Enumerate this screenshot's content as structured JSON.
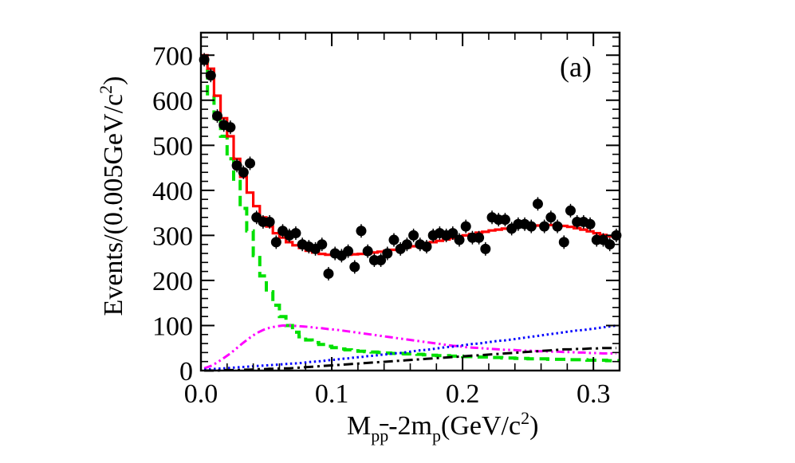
{
  "chart_data": {
    "type": "line",
    "panel_label": "(a)",
    "xlabel": {
      "main": "M",
      "sub1": "p",
      "sub_bar": "p",
      "rest": "-2m",
      "sub2": "p",
      "unit_open": "(GeV/c",
      "sup": "2",
      "unit_close": ")"
    },
    "ylabel": {
      "main": "Events/(0.005GeV/c",
      "sup": "2",
      "close": ")"
    },
    "xlim": [
      0.0,
      0.32
    ],
    "ylim": [
      0,
      750
    ],
    "x_ticks": [
      0.0,
      0.1,
      0.2,
      0.3
    ],
    "x_tick_labels": [
      "0.0",
      "0.1",
      "0.2",
      "0.3"
    ],
    "y_ticks": [
      0,
      100,
      200,
      300,
      400,
      500,
      600,
      700
    ],
    "y_tick_labels": [
      "0",
      "100",
      "200",
      "300",
      "400",
      "500",
      "600",
      "700"
    ],
    "data_points": {
      "name": "Data",
      "x": [
        0.0025,
        0.0075,
        0.0125,
        0.0175,
        0.0225,
        0.0275,
        0.0325,
        0.0375,
        0.0425,
        0.0475,
        0.0525,
        0.0575,
        0.0625,
        0.0675,
        0.0725,
        0.0775,
        0.0825,
        0.0875,
        0.0925,
        0.0975,
        0.1025,
        0.1075,
        0.1125,
        0.1175,
        0.1225,
        0.1275,
        0.1325,
        0.1375,
        0.1425,
        0.1475,
        0.1525,
        0.1575,
        0.1625,
        0.1675,
        0.1725,
        0.1775,
        0.1825,
        0.1875,
        0.1925,
        0.1975,
        0.2025,
        0.2075,
        0.2125,
        0.2175,
        0.2225,
        0.2275,
        0.2325,
        0.2375,
        0.2425,
        0.2475,
        0.2525,
        0.2575,
        0.2625,
        0.2675,
        0.2725,
        0.2775,
        0.2825,
        0.2875,
        0.2925,
        0.2975,
        0.3025,
        0.3075,
        0.3125,
        0.3175
      ],
      "y": [
        690,
        655,
        565,
        545,
        540,
        455,
        440,
        460,
        340,
        330,
        330,
        285,
        310,
        300,
        305,
        280,
        275,
        270,
        280,
        215,
        260,
        255,
        265,
        230,
        310,
        265,
        245,
        245,
        260,
        290,
        270,
        280,
        300,
        280,
        275,
        300,
        305,
        300,
        305,
        290,
        320,
        295,
        295,
        270,
        340,
        335,
        335,
        315,
        325,
        325,
        320,
        370,
        320,
        340,
        320,
        285,
        355,
        330,
        330,
        325,
        290,
        290,
        280,
        300
      ],
      "err": 15,
      "color": "#000000"
    },
    "fit": {
      "name": "Total fit",
      "style": "solid",
      "color": "#ff0000",
      "values": [
        700,
        670,
        610,
        560,
        520,
        470,
        430,
        395,
        365,
        340,
        320,
        305,
        295,
        285,
        278,
        272,
        266,
        262,
        259,
        257,
        256,
        256,
        257,
        258,
        259,
        260,
        262,
        264,
        266,
        268,
        270,
        273,
        276,
        279,
        282,
        285,
        288,
        291,
        294,
        297,
        300,
        303,
        306,
        308,
        311,
        313,
        315,
        317,
        319,
        320,
        321,
        322,
        323,
        323,
        322,
        321,
        319,
        316,
        313,
        309,
        305,
        301,
        298,
        296
      ]
    },
    "curves": [
      {
        "name": "Green dashed",
        "style": "dashed",
        "color": "#00e000",
        "values": [
          690,
          610,
          560,
          520,
          470,
          420,
          360,
          310,
          255,
          210,
          175,
          145,
          120,
          100,
          85,
          75,
          68,
          62,
          58,
          54,
          51,
          48,
          46,
          44,
          43,
          42,
          41,
          40,
          39,
          38,
          38,
          37,
          37,
          36,
          35,
          34,
          33,
          33,
          32,
          32,
          31,
          31,
          30,
          30,
          29,
          29,
          28,
          28,
          27,
          27,
          26,
          26,
          26,
          25,
          25,
          25,
          24,
          24,
          24,
          23,
          23,
          23,
          22,
          22
        ]
      },
      {
        "name": "Magenta dash-dot-dot",
        "style": "dashdotdot",
        "color": "#ff00ff",
        "values": [
          5,
          10,
          18,
          28,
          38,
          50,
          62,
          73,
          83,
          90,
          95,
          98,
          100,
          100,
          99,
          98,
          97,
          95,
          94,
          92,
          91,
          89,
          87,
          85,
          83,
          81,
          79,
          77,
          75,
          73,
          71,
          69,
          67,
          65,
          63,
          61,
          59,
          57,
          55,
          54,
          52,
          51,
          50,
          49,
          48,
          47,
          46,
          46,
          45,
          44,
          44,
          43,
          43,
          42,
          42,
          41,
          41,
          40,
          40,
          39,
          39,
          38,
          38,
          38
        ]
      },
      {
        "name": "Blue dotted",
        "style": "dotted",
        "color": "#0000ff",
        "values": [
          2,
          3,
          4,
          5,
          6,
          7,
          8,
          9,
          10,
          11,
          12,
          13,
          14,
          15,
          16,
          17,
          19,
          20,
          21,
          23,
          24,
          26,
          27,
          29,
          30,
          32,
          33,
          35,
          36,
          38,
          39,
          41,
          43,
          45,
          46,
          48,
          50,
          52,
          53,
          55,
          57,
          59,
          60,
          62,
          64,
          66,
          67,
          69,
          71,
          73,
          75,
          77,
          79,
          81,
          83,
          85,
          87,
          89,
          90,
          92,
          94,
          96,
          98,
          100
        ]
      },
      {
        "name": "Black dash-dot",
        "style": "dashdot",
        "color": "#000000",
        "values": [
          0,
          0,
          0,
          1,
          1,
          1,
          2,
          2,
          3,
          3,
          4,
          4,
          5,
          5,
          6,
          7,
          8,
          9,
          10,
          11,
          12,
          13,
          14,
          15,
          16,
          17,
          18,
          19,
          20,
          21,
          22,
          23,
          24,
          25,
          26,
          27,
          28,
          29,
          30,
          31,
          32,
          33,
          34,
          35,
          36,
          37,
          38,
          39,
          40,
          41,
          42,
          43,
          44,
          45,
          46,
          47,
          47,
          48,
          48,
          49,
          49,
          50,
          50,
          50
        ]
      }
    ]
  }
}
